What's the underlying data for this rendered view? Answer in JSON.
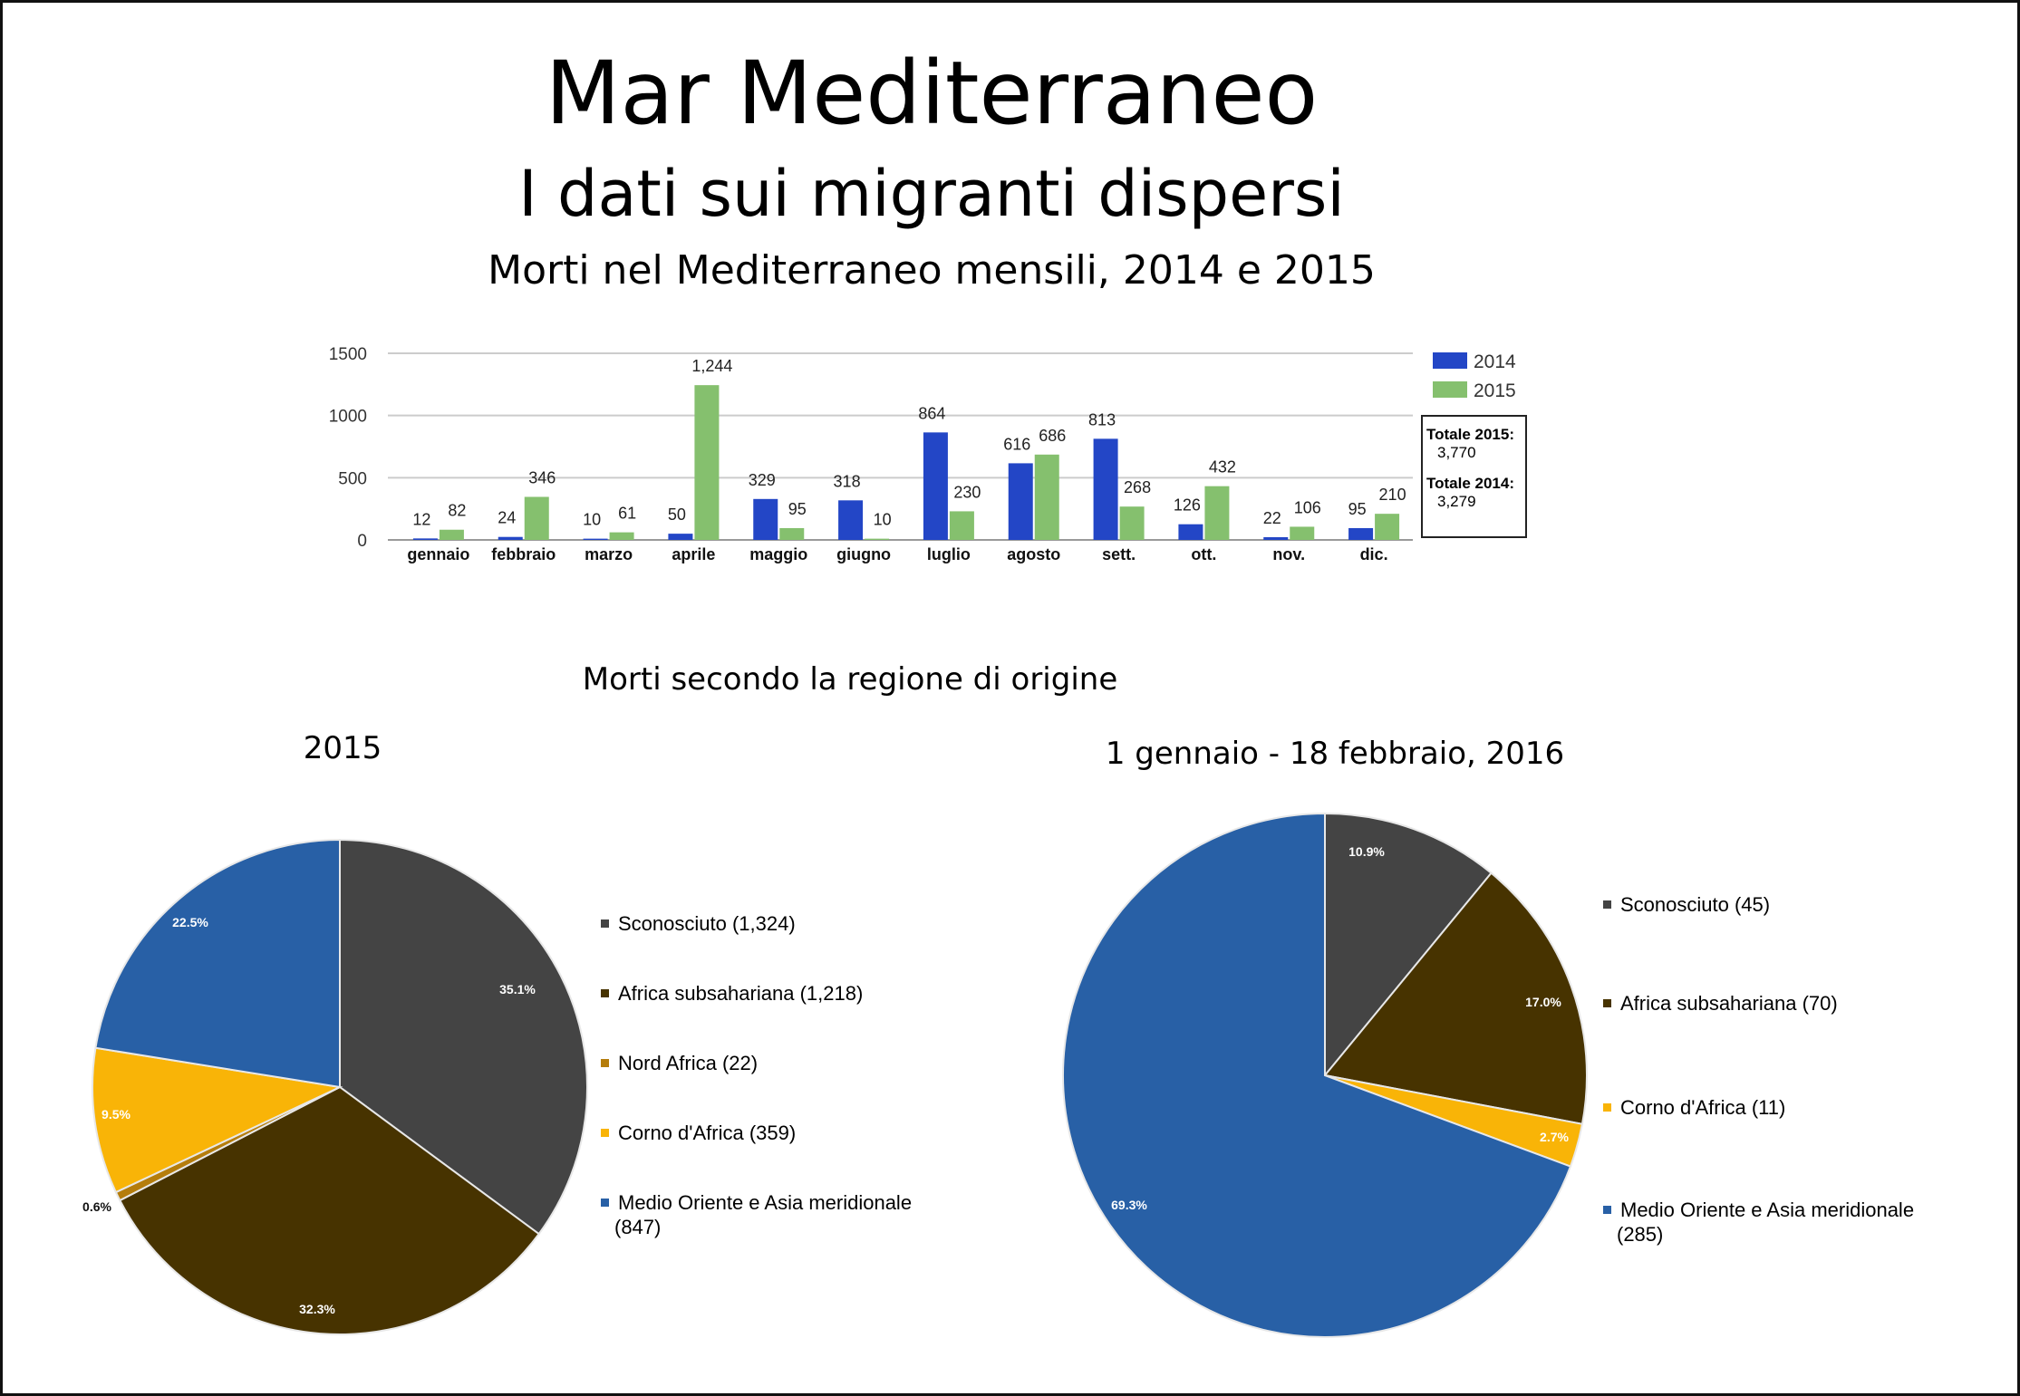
{
  "header": {
    "title": "Mar Mediterraneo",
    "subtitle": "I dati sui migranti dispersi",
    "bar_chart_title": "Morti nel Mediterraneo mensili, 2014 e 2015",
    "section_title": "Morti secondo la regione di origine"
  },
  "totals_box": {
    "label_2015": "Totale 2015:",
    "value_2015": "3,770",
    "label_2014": "Totale 2014:",
    "value_2014": "3,279"
  },
  "colors": {
    "series_2014": "#2346c6",
    "series_2015": "#85c06e",
    "grid": "#cccccc",
    "sconosciuto": "#444444",
    "africa_subsahariana": "#473300",
    "nord_africa": "#b57d0c",
    "corno_africa": "#f9b407",
    "medio_oriente": "#2860a6"
  },
  "chart_data": [
    {
      "type": "bar",
      "title": "Morti nel Mediterraneo mensili, 2014 e 2015",
      "categories": [
        "gennaio",
        "febbraio",
        "marzo",
        "aprile",
        "maggio",
        "giugno",
        "luglio",
        "agosto",
        "sett.",
        "ott.",
        "nov.",
        "dic."
      ],
      "series": [
        {
          "name": "2014",
          "values": [
            12,
            24,
            10,
            50,
            329,
            318,
            864,
            616,
            813,
            126,
            22,
            95
          ],
          "labels": [
            "12",
            "24",
            "10",
            "50",
            "329",
            "318",
            "864",
            "616",
            "813",
            "126",
            "22",
            "95"
          ]
        },
        {
          "name": "2015",
          "values": [
            82,
            346,
            61,
            1244,
            95,
            10,
            230,
            686,
            268,
            432,
            106,
            210
          ],
          "labels": [
            "82",
            "346",
            "61",
            "1,244",
            "95",
            "10",
            "230",
            "686",
            "268",
            "432",
            "106",
            "210"
          ]
        }
      ],
      "ylim": [
        0,
        1500
      ],
      "yticks": [
        "0",
        "500",
        "1000",
        "1500"
      ],
      "grid": true,
      "legend": "top-right"
    },
    {
      "type": "pie",
      "title": "2015",
      "slices": [
        {
          "label": "Sconosciuto",
          "count": "(1,324)",
          "value": 1324,
          "percent": "35.1%",
          "color_key": "sconosciuto"
        },
        {
          "label": "Africa subsahariana",
          "count": "(1,218)",
          "value": 1218,
          "percent": "32.3%",
          "color_key": "africa_subsahariana"
        },
        {
          "label": "Nord Africa",
          "count": "(22)",
          "value": 22,
          "percent": "0.6%",
          "color_key": "nord_africa"
        },
        {
          "label": "Corno d'Africa",
          "count": "(359)",
          "value": 359,
          "percent": "9.5%",
          "color_key": "corno_africa"
        },
        {
          "label": "Medio Oriente e Asia meridionale",
          "count": "(847)",
          "value": 847,
          "percent": "22.5%",
          "color_key": "medio_oriente"
        }
      ],
      "legend": "right"
    },
    {
      "type": "pie",
      "title": "1 gennaio - 18 febbraio, 2016",
      "slices": [
        {
          "label": "Sconosciuto",
          "count": "(45)",
          "value": 45,
          "percent": "10.9%",
          "color_key": "sconosciuto"
        },
        {
          "label": "Africa subsahariana",
          "count": "(70)",
          "value": 70,
          "percent": "17.0%",
          "color_key": "africa_subsahariana"
        },
        {
          "label": "Corno d'Africa",
          "count": "(11)",
          "value": 11,
          "percent": "2.7%",
          "color_key": "corno_africa"
        },
        {
          "label": "Medio Oriente e Asia meridionale",
          "count": "(285)",
          "value": 285,
          "percent": "69.3%",
          "color_key": "medio_oriente"
        }
      ],
      "legend": "right"
    }
  ]
}
